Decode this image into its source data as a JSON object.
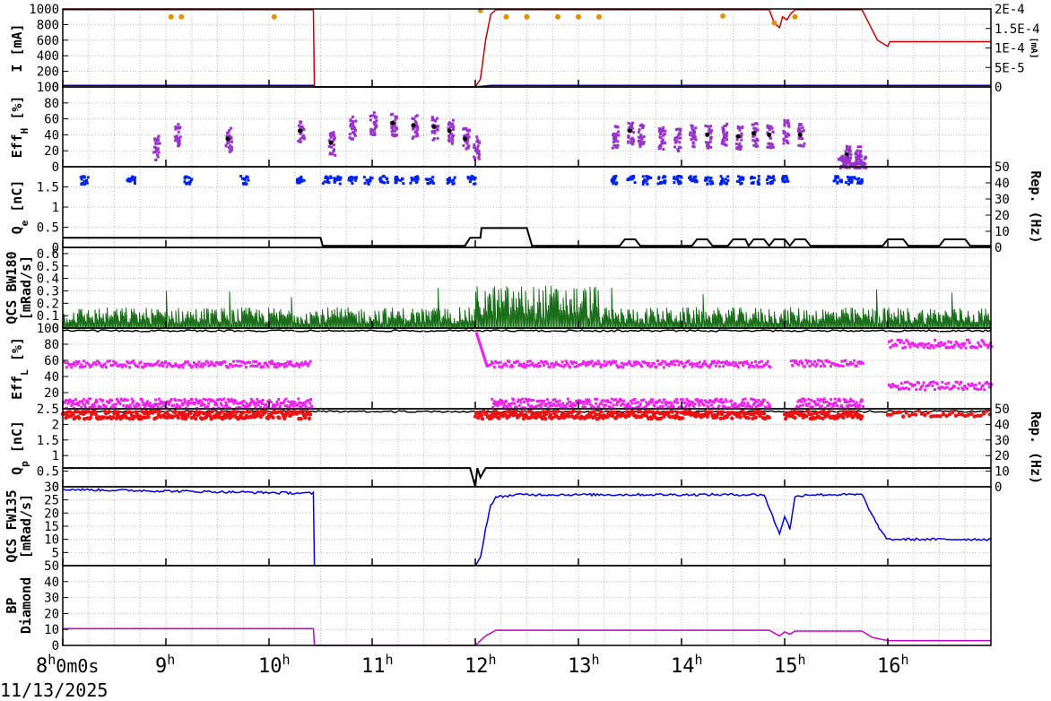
{
  "date": "11/13/2025",
  "chart_data": {
    "type": "line",
    "x_ticks": [
      {
        "sup": "h",
        "text": "8",
        "extra": "0m0s"
      },
      {
        "sup": "h",
        "text": "9"
      },
      {
        "sup": "h",
        "text": "10"
      },
      {
        "sup": "h",
        "text": "11"
      },
      {
        "sup": "h",
        "text": "12"
      },
      {
        "sup": "h",
        "text": "13"
      },
      {
        "sup": "h",
        "text": "14"
      },
      {
        "sup": "h",
        "text": "15"
      },
      {
        "sup": "h",
        "text": "16"
      }
    ],
    "x_range_hours": [
      8.0,
      17.0
    ],
    "grid": true,
    "panels": [
      {
        "id": "current",
        "ylabel": "I [mA]",
        "ylim": [
          0,
          1000
        ],
        "yticks": [
          "0",
          "200",
          "400",
          "600",
          "800",
          "1000"
        ],
        "y2ticks": [
          "0",
          "5E-5",
          "1E-4",
          "1.5E-4",
          "2E-4"
        ],
        "y2label": "[mA]",
        "series": [
          {
            "color": "#cc0000",
            "points": [
              [
                8.0,
                990
              ],
              [
                10.43,
                990
              ],
              [
                10.44,
                0
              ],
              [
                12.0,
                0
              ],
              [
                12.05,
                100
              ],
              [
                12.1,
                600
              ],
              [
                12.15,
                930
              ],
              [
                12.2,
                990
              ],
              [
                14.85,
                990
              ],
              [
                14.9,
                820
              ],
              [
                14.95,
                760
              ],
              [
                14.98,
                900
              ],
              [
                15.02,
                860
              ],
              [
                15.06,
                940
              ],
              [
                15.1,
                990
              ],
              [
                15.75,
                990
              ],
              [
                15.9,
                600
              ],
              [
                16.0,
                520
              ],
              [
                16.02,
                580
              ],
              [
                17.0,
                580
              ]
            ]
          },
          {
            "color": "#0000aa",
            "points": [
              [
                8.0,
                20
              ],
              [
                10.43,
                20
              ],
              [
                10.44,
                0
              ],
              [
                12.0,
                0
              ],
              [
                12.15,
                20
              ],
              [
                17.0,
                20
              ]
            ]
          }
        ],
        "dots": {
          "color": "#e09000",
          "points": [
            [
              9.05,
              900
            ],
            [
              9.15,
              900
            ],
            [
              10.05,
              900
            ],
            [
              12.05,
              980
            ],
            [
              12.3,
              900
            ],
            [
              12.5,
              900
            ],
            [
              12.8,
              900
            ],
            [
              13.0,
              900
            ],
            [
              13.2,
              900
            ],
            [
              14.4,
              910
            ],
            [
              14.9,
              820
            ],
            [
              15.1,
              900
            ]
          ]
        }
      },
      {
        "id": "eff_h",
        "ylabel": "Eff_H [%]",
        "ylim": [
          0,
          100
        ],
        "yticks": [
          "0",
          "20",
          "40",
          "60",
          "80",
          "100"
        ]
      },
      {
        "id": "qe",
        "ylabel": "Q_e [nC]",
        "ylim": [
          0,
          2
        ],
        "yticks": [
          "0",
          "0.5",
          "1",
          "1.5"
        ],
        "y2ticks": [
          "0",
          "10",
          "20",
          "30",
          "40",
          "50"
        ],
        "y2label": "Rep. (Hz)"
      },
      {
        "id": "qcs_bw180",
        "ylabel": "QCS BW180 [mRad/s]",
        "ylim": [
          0,
          0.65
        ],
        "yticks": [
          "0",
          "0.1",
          "0.2",
          "0.3",
          "0.4",
          "0.5",
          "0.6"
        ]
      },
      {
        "id": "eff_l",
        "ylabel": "Eff_L [%]",
        "ylim": [
          0,
          100
        ],
        "yticks": [
          "20",
          "40",
          "60",
          "80",
          "100"
        ]
      },
      {
        "id": "qp",
        "ylabel": "Q_p [nC]",
        "ylim": [
          0,
          2.5
        ],
        "yticks": [
          "0",
          "0.5",
          "1",
          "1.5",
          "2",
          "2.5"
        ],
        "y2ticks": [
          "0",
          "10",
          "20",
          "30",
          "40",
          "50"
        ],
        "y2label": "Rep. (Hz)"
      },
      {
        "id": "qcs_fw135",
        "ylabel": "QCS FW135 [mRad/s]",
        "ylim": [
          0,
          30
        ],
        "yticks": [
          "5",
          "10",
          "15",
          "20",
          "25",
          "30"
        ],
        "series": [
          {
            "color": "#0000ee",
            "points": [
              [
                8.0,
                29
              ],
              [
                10.43,
                27.5
              ],
              [
                10.44,
                0
              ],
              [
                12.0,
                0
              ],
              [
                12.05,
                3
              ],
              [
                12.1,
                14
              ],
              [
                12.15,
                23
              ],
              [
                12.2,
                26
              ],
              [
                12.4,
                27
              ],
              [
                14.8,
                27
              ],
              [
                14.85,
                22
              ],
              [
                14.95,
                12
              ],
              [
                15.0,
                19
              ],
              [
                15.05,
                14
              ],
              [
                15.1,
                26
              ],
              [
                15.2,
                27
              ],
              [
                15.75,
                27
              ],
              [
                15.85,
                19
              ],
              [
                15.95,
                12
              ],
              [
                16.0,
                10
              ],
              [
                17.0,
                10
              ]
            ]
          }
        ]
      },
      {
        "id": "bp_diamond",
        "ylabel": "BP Diamond",
        "ylim": [
          0,
          50
        ],
        "yticks": [
          "0",
          "10",
          "20",
          "30",
          "40",
          "50"
        ],
        "series": [
          {
            "color": "#cc00cc",
            "points": [
              [
                8.0,
                10.5
              ],
              [
                10.43,
                10.5
              ],
              [
                10.44,
                0
              ],
              [
                12.0,
                0
              ],
              [
                12.1,
                6
              ],
              [
                12.2,
                9.5
              ],
              [
                14.85,
                9.5
              ],
              [
                14.95,
                6
              ],
              [
                15.0,
                8.5
              ],
              [
                15.05,
                7
              ],
              [
                15.1,
                9
              ],
              [
                15.75,
                9
              ],
              [
                15.85,
                5
              ],
              [
                16.0,
                3
              ],
              [
                17.0,
                3
              ]
            ]
          }
        ]
      }
    ]
  }
}
